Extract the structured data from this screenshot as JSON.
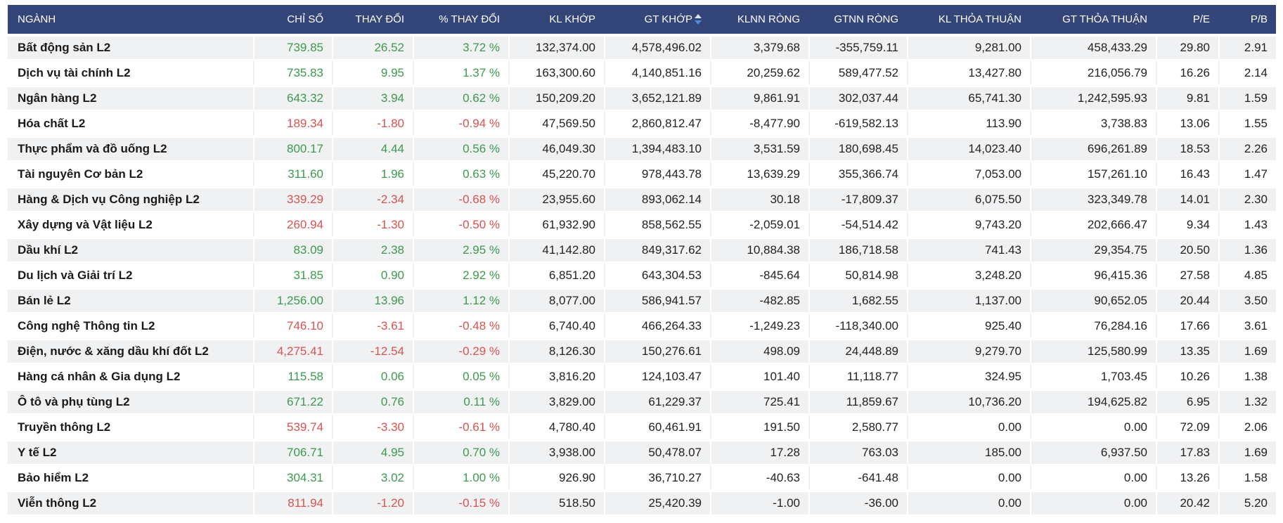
{
  "colors": {
    "header_bg": "#34457a",
    "up": "#3c9a4e",
    "down": "#d9534f",
    "stripe": "#f0f1f3"
  },
  "headers": [
    "NGÀNH",
    "CHỈ SỐ",
    "THAY ĐỔI",
    "% THAY ĐỔI",
    "KL KHỚP",
    "GT KHỚP",
    "KLNN RÒNG",
    "GTNN RÒNG",
    "KL THỎA THUẬN",
    "GT THỎA THUẬN",
    "P/E",
    "P/B"
  ],
  "sorted_column": "GT KHỚP",
  "sort_icon": "sort-desc-icon",
  "rows": [
    [
      "Bất động sản L2",
      "739.85",
      "26.52",
      "3.72 %",
      "132,374.00",
      "4,578,496.02",
      "3,379.68",
      "-355,759.11",
      "9,281.00",
      "458,433.29",
      "29.80",
      "2.91"
    ],
    [
      "Dịch vụ tài chính L2",
      "735.83",
      "9.95",
      "1.37 %",
      "163,300.60",
      "4,140,851.16",
      "20,259.62",
      "589,477.52",
      "13,427.80",
      "216,056.79",
      "16.26",
      "2.14"
    ],
    [
      "Ngân hàng L2",
      "643.32",
      "3.94",
      "0.62 %",
      "150,209.20",
      "3,652,121.89",
      "9,861.91",
      "302,037.44",
      "65,741.30",
      "1,242,595.93",
      "9.81",
      "1.59"
    ],
    [
      "Hóa chất L2",
      "189.34",
      "-1.80",
      "-0.94 %",
      "47,569.50",
      "2,860,812.47",
      "-8,477.90",
      "-619,582.13",
      "113.90",
      "3,738.83",
      "13.06",
      "1.55"
    ],
    [
      "Thực phẩm và đồ uống L2",
      "800.17",
      "4.44",
      "0.56 %",
      "46,049.30",
      "1,394,483.10",
      "3,531.59",
      "180,698.45",
      "14,023.40",
      "696,261.89",
      "18.53",
      "2.26"
    ],
    [
      "Tài nguyên Cơ bản L2",
      "311.60",
      "1.96",
      "0.63 %",
      "45,220.70",
      "978,443.78",
      "13,639.29",
      "355,366.74",
      "7,053.00",
      "157,261.10",
      "16.43",
      "1.47"
    ],
    [
      "Hàng & Dịch vụ Công nghiệp L2",
      "339.29",
      "-2.34",
      "-0.68 %",
      "23,955.60",
      "893,062.14",
      "30.18",
      "-17,809.37",
      "6,075.50",
      "323,349.78",
      "14.01",
      "2.30"
    ],
    [
      "Xây dựng và Vật liệu L2",
      "260.94",
      "-1.30",
      "-0.50 %",
      "61,932.90",
      "858,562.55",
      "-2,059.01",
      "-54,514.42",
      "9,743.20",
      "202,666.47",
      "9.34",
      "1.43"
    ],
    [
      "Dầu khí L2",
      "83.09",
      "2.38",
      "2.95 %",
      "41,142.80",
      "849,317.62",
      "10,884.38",
      "186,718.58",
      "741.43",
      "29,354.75",
      "20.50",
      "1.36"
    ],
    [
      "Du lịch và Giải trí L2",
      "31.85",
      "0.90",
      "2.92 %",
      "6,851.20",
      "643,304.53",
      "-845.64",
      "50,814.98",
      "3,248.20",
      "96,415.36",
      "27.58",
      "4.85"
    ],
    [
      "Bán lẻ L2",
      "1,256.00",
      "13.96",
      "1.12 %",
      "8,077.00",
      "586,941.57",
      "-482.85",
      "1,682.55",
      "1,137.00",
      "90,652.05",
      "20.44",
      "3.50"
    ],
    [
      "Công nghệ Thông tin L2",
      "746.10",
      "-3.61",
      "-0.48 %",
      "6,740.40",
      "466,264.33",
      "-1,249.23",
      "-118,340.00",
      "925.40",
      "76,284.16",
      "17.66",
      "3.61"
    ],
    [
      "Điện, nước & xăng dầu khí đốt L2",
      "4,275.41",
      "-12.54",
      "-0.29 %",
      "8,126.30",
      "150,276.61",
      "498.09",
      "24,448.89",
      "9,279.70",
      "125,580.99",
      "13.35",
      "1.69"
    ],
    [
      "Hàng cá nhân & Gia dụng L2",
      "115.58",
      "0.06",
      "0.05 %",
      "3,816.20",
      "124,103.47",
      "101.40",
      "11,118.77",
      "324.95",
      "1,703.45",
      "10.26",
      "1.38"
    ],
    [
      "Ô tô và phụ tùng L2",
      "671.22",
      "0.76",
      "0.11 %",
      "3,829.00",
      "61,229.37",
      "725.41",
      "11,859.67",
      "10,736.20",
      "194,625.82",
      "6.95",
      "1.32"
    ],
    [
      "Truyền thông L2",
      "539.74",
      "-3.30",
      "-0.61 %",
      "4,780.40",
      "60,461.91",
      "191.50",
      "2,580.77",
      "0.00",
      "0.00",
      "72.09",
      "2.06"
    ],
    [
      "Y tế L2",
      "706.71",
      "4.95",
      "0.70 %",
      "3,938.00",
      "50,478.07",
      "17.28",
      "763.03",
      "185.00",
      "6,937.50",
      "17.83",
      "1.69"
    ],
    [
      "Bảo hiểm L2",
      "304.31",
      "3.02",
      "1.00 %",
      "926.90",
      "36,710.27",
      "-40.63",
      "-641.48",
      "0.00",
      "0.00",
      "13.26",
      "1.58"
    ],
    [
      "Viễn thông L2",
      "811.94",
      "-1.20",
      "-0.15 %",
      "518.50",
      "25,420.39",
      "-1.00",
      "-36.00",
      "0.00",
      "0.00",
      "20.42",
      "5.20"
    ]
  ]
}
